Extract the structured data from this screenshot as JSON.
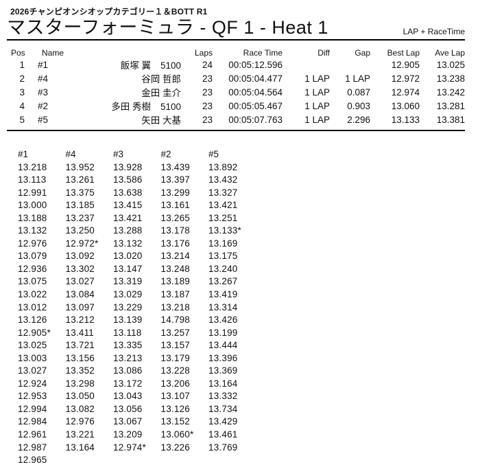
{
  "header": {
    "event": "2026チャンピオンシオップカテゴリー１＆BOTT R1",
    "title": "マスターフォーミュラ - QF 1 - Heat 1",
    "timing_note": "LAP + RaceTime"
  },
  "results": {
    "columns": [
      "Pos",
      "Name",
      "Laps",
      "Race Time",
      "Diff",
      "Gap",
      "Best Lap",
      "Ave Lap"
    ],
    "rows": [
      {
        "pos": "1",
        "car": "#1",
        "name": "飯塚 翼",
        "entry": "5100",
        "laps": "24",
        "race_time": "00:05:12.596",
        "diff": "",
        "gap": "",
        "best": "12.905",
        "ave": "13.025"
      },
      {
        "pos": "2",
        "car": "#4",
        "name": "谷岡 哲郎",
        "entry": "",
        "laps": "23",
        "race_time": "00:05:04.477",
        "diff": "1 LAP",
        "gap": "1 LAP",
        "best": "12.972",
        "ave": "13.238"
      },
      {
        "pos": "3",
        "car": "#3",
        "name": "金田 圭介",
        "entry": "",
        "laps": "23",
        "race_time": "00:05:04.564",
        "diff": "1 LAP",
        "gap": "0.087",
        "best": "12.974",
        "ave": "13.242"
      },
      {
        "pos": "4",
        "car": "#2",
        "name": "多田 秀樹",
        "entry": "5100",
        "laps": "23",
        "race_time": "00:05:05.467",
        "diff": "1 LAP",
        "gap": "0.903",
        "best": "13.060",
        "ave": "13.281"
      },
      {
        "pos": "5",
        "car": "#5",
        "name": "矢田 大基",
        "entry": "",
        "laps": "23",
        "race_time": "00:05:07.763",
        "diff": "1 LAP",
        "gap": "2.296",
        "best": "13.133",
        "ave": "13.381"
      }
    ]
  },
  "lap_chart": {
    "columns": [
      {
        "car": "#1",
        "laps": [
          "13.218",
          "13.113",
          "12.991",
          "13.000",
          "13.188",
          "13.132",
          "12.976",
          "13.079",
          "12.936",
          "13.075",
          "13.022",
          "13.012",
          "13.126",
          "12.905*",
          "13.025",
          "13.003",
          "13.027",
          "12.924",
          "12.953",
          "12.994",
          "12.984",
          "12.961",
          "12.987",
          "12.965"
        ]
      },
      {
        "car": "#4",
        "laps": [
          "13.952",
          "13.261",
          "13.375",
          "13.185",
          "13.237",
          "13.250",
          "12.972*",
          "13.092",
          "13.302",
          "13.027",
          "13.084",
          "13.097",
          "13.212",
          "13.411",
          "13.721",
          "13.156",
          "13.352",
          "13.298",
          "13.050",
          "13.082",
          "12.976",
          "13.221",
          "13.164"
        ]
      },
      {
        "car": "#3",
        "laps": [
          "13.928",
          "13.586",
          "13.638",
          "13.415",
          "13.421",
          "13.288",
          "13.132",
          "13.020",
          "13.147",
          "13.319",
          "13.029",
          "13.229",
          "13.139",
          "13.118",
          "13.335",
          "13.213",
          "13.086",
          "13.172",
          "13.043",
          "13.056",
          "13.067",
          "13.209",
          "12.974*"
        ]
      },
      {
        "car": "#2",
        "laps": [
          "13.439",
          "13.397",
          "13.299",
          "13.161",
          "13.265",
          "13.178",
          "13.176",
          "13.214",
          "13.248",
          "13.189",
          "13.187",
          "13.218",
          "14.798",
          "13.257",
          "13.157",
          "13.179",
          "13.228",
          "13.206",
          "13.107",
          "13.126",
          "13.152",
          "13.060*",
          "13.226"
        ]
      },
      {
        "car": "#5",
        "laps": [
          "13.892",
          "13.432",
          "13.327",
          "13.421",
          "13.251",
          "13.133*",
          "13.169",
          "13.175",
          "13.240",
          "13.267",
          "13.419",
          "13.314",
          "13.426",
          "13.199",
          "13.444",
          "13.396",
          "13.369",
          "13.164",
          "13.332",
          "13.734",
          "13.429",
          "13.461",
          "13.769"
        ]
      }
    ]
  }
}
